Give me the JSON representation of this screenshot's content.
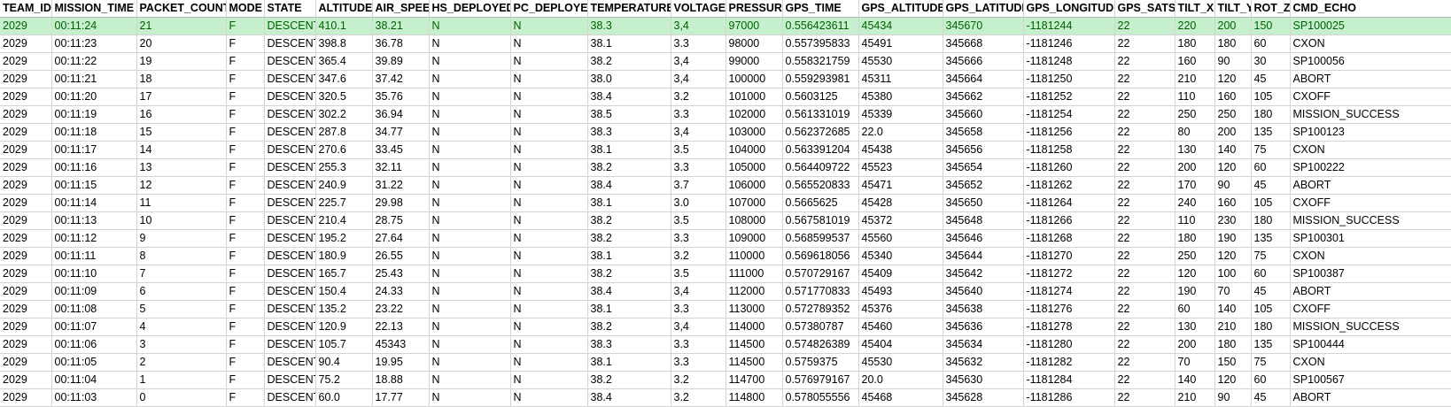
{
  "sheet": {
    "columns": [
      "TEAM_ID",
      "MISSION_TIME",
      "PACKET_COUNT",
      "MODE",
      "STATE",
      "ALTITUDE",
      "AIR_SPEED",
      "HS_DEPLOYED",
      "PC_DEPLOYED",
      "TEMPERATURE",
      "VOLTAGE",
      "PRESSURE",
      "GPS_TIME",
      "GPS_ALTITUDE",
      "GPS_LATITUDE",
      "GPS_LONGITUDE",
      "GPS_SATS",
      "TILT_X",
      "TILT_Y",
      "ROT_Z",
      "CMD_ECHO"
    ],
    "selected_row_index": 0,
    "highlight_color": "#c6efce",
    "rows": [
      [
        "2029",
        "00:11:24",
        "21",
        "F",
        "DESCENT",
        "410.1",
        "38.21",
        "N",
        "N",
        "38.3",
        "3,4",
        "97000",
        "0.556423611",
        "45434",
        "345670",
        "-1181244",
        "22",
        "220",
        "200",
        "150",
        "SP100025"
      ],
      [
        "2029",
        "00:11:23",
        "20",
        "F",
        "DESCENT",
        "398.8",
        "36.78",
        "N",
        "N",
        "38.1",
        "3.3",
        "98000",
        "0.557395833",
        "45491",
        "345668",
        "-1181246",
        "22",
        "180",
        "180",
        "60",
        "CXON"
      ],
      [
        "2029",
        "00:11:22",
        "19",
        "F",
        "DESCENT",
        "365.4",
        "39.89",
        "N",
        "N",
        "38.2",
        "3,4",
        "99000",
        "0.558321759",
        "45530",
        "345666",
        "-1181248",
        "22",
        "160",
        "90",
        "30",
        "SP100056"
      ],
      [
        "2029",
        "00:11:21",
        "18",
        "F",
        "DESCENT",
        "347.6",
        "37.42",
        "N",
        "N",
        "38.0",
        "3,4",
        "100000",
        "0.559293981",
        "45311",
        "345664",
        "-1181250",
        "22",
        "210",
        "120",
        "45",
        "ABORT"
      ],
      [
        "2029",
        "00:11:20",
        "17",
        "F",
        "DESCENT",
        "320.5",
        "35.76",
        "N",
        "N",
        "38.4",
        "3.2",
        "101000",
        "0.5603125",
        "45380",
        "345662",
        "-1181252",
        "22",
        "110",
        "160",
        "105",
        "CXOFF"
      ],
      [
        "2029",
        "00:11:19",
        "16",
        "F",
        "DESCENT",
        "302.2",
        "36.94",
        "N",
        "N",
        "38.5",
        "3.3",
        "102000",
        "0.561331019",
        "45339",
        "345660",
        "-1181254",
        "22",
        "250",
        "250",
        "180",
        "MISSION_SUCCESS"
      ],
      [
        "2029",
        "00:11:18",
        "15",
        "F",
        "DESCENT",
        "287.8",
        "34.77",
        "N",
        "N",
        "38.3",
        "3,4",
        "103000",
        "0.562372685",
        "22.0",
        "345658",
        "-1181256",
        "22",
        "80",
        "200",
        "135",
        "SP100123"
      ],
      [
        "2029",
        "00:11:17",
        "14",
        "F",
        "DESCENT",
        "270.6",
        "33.45",
        "N",
        "N",
        "38.1",
        "3.5",
        "104000",
        "0.563391204",
        "45438",
        "345656",
        "-1181258",
        "22",
        "130",
        "140",
        "75",
        "CXON"
      ],
      [
        "2029",
        "00:11:16",
        "13",
        "F",
        "DESCENT",
        "255.3",
        "32.11",
        "N",
        "N",
        "38.2",
        "3.3",
        "105000",
        "0.564409722",
        "45523",
        "345654",
        "-1181260",
        "22",
        "200",
        "120",
        "60",
        "SP100222"
      ],
      [
        "2029",
        "00:11:15",
        "12",
        "F",
        "DESCENT",
        "240.9",
        "31.22",
        "N",
        "N",
        "38.4",
        "3.7",
        "106000",
        "0.565520833",
        "45471",
        "345652",
        "-1181262",
        "22",
        "170",
        "90",
        "45",
        "ABORT"
      ],
      [
        "2029",
        "00:11:14",
        "11",
        "F",
        "DESCENT",
        "225.7",
        "29.98",
        "N",
        "N",
        "38.1",
        "3.0",
        "107000",
        "0.5665625",
        "45428",
        "345650",
        "-1181264",
        "22",
        "240",
        "160",
        "105",
        "CXOFF"
      ],
      [
        "2029",
        "00:11:13",
        "10",
        "F",
        "DESCENT",
        "210.4",
        "28.75",
        "N",
        "N",
        "38.2",
        "3.5",
        "108000",
        "0.567581019",
        "45372",
        "345648",
        "-1181266",
        "22",
        "110",
        "230",
        "180",
        "MISSION_SUCCESS"
      ],
      [
        "2029",
        "00:11:12",
        "9",
        "F",
        "DESCENT",
        "195.2",
        "27.64",
        "N",
        "N",
        "38.2",
        "3.3",
        "109000",
        "0.568599537",
        "45560",
        "345646",
        "-1181268",
        "22",
        "180",
        "190",
        "135",
        "SP100301"
      ],
      [
        "2029",
        "00:11:11",
        "8",
        "F",
        "DESCENT",
        "180.9",
        "26.55",
        "N",
        "N",
        "38.1",
        "3.2",
        "110000",
        "0.569618056",
        "45340",
        "345644",
        "-1181270",
        "22",
        "250",
        "120",
        "75",
        "CXON"
      ],
      [
        "2029",
        "00:11:10",
        "7",
        "F",
        "DESCENT",
        "165.7",
        "25.43",
        "N",
        "N",
        "38.2",
        "3.5",
        "111000",
        "0.570729167",
        "45409",
        "345642",
        "-1181272",
        "22",
        "120",
        "100",
        "60",
        "SP100387"
      ],
      [
        "2029",
        "00:11:09",
        "6",
        "F",
        "DESCENT",
        "150.4",
        "24.33",
        "N",
        "N",
        "38.4",
        "3,4",
        "112000",
        "0.571770833",
        "45493",
        "345640",
        "-1181274",
        "22",
        "190",
        "70",
        "45",
        "ABORT"
      ],
      [
        "2029",
        "00:11:08",
        "5",
        "F",
        "DESCENT",
        "135.2",
        "23.22",
        "N",
        "N",
        "38.1",
        "3.3",
        "113000",
        "0.572789352",
        "45376",
        "345638",
        "-1181276",
        "22",
        "60",
        "140",
        "105",
        "CXOFF"
      ],
      [
        "2029",
        "00:11:07",
        "4",
        "F",
        "DESCENT",
        "120.9",
        "22.13",
        "N",
        "N",
        "38.2",
        "3,4",
        "114000",
        "0.57380787",
        "45460",
        "345636",
        "-1181278",
        "22",
        "130",
        "210",
        "180",
        "MISSION_SUCCESS"
      ],
      [
        "2029",
        "00:11:06",
        "3",
        "F",
        "DESCENT",
        "105.7",
        "45343",
        "N",
        "N",
        "38.3",
        "3.3",
        "114500",
        "0.574826389",
        "45404",
        "345634",
        "-1181280",
        "22",
        "200",
        "180",
        "135",
        "SP100444"
      ],
      [
        "2029",
        "00:11:05",
        "2",
        "F",
        "DESCENT",
        "90.4",
        "19.95",
        "N",
        "N",
        "38.1",
        "3.3",
        "114500",
        "0.5759375",
        "45530",
        "345632",
        "-1181282",
        "22",
        "70",
        "150",
        "75",
        "CXON"
      ],
      [
        "2029",
        "00:11:04",
        "1",
        "F",
        "DESCENT",
        "75.2",
        "18.88",
        "N",
        "N",
        "38.2",
        "3.2",
        "114700",
        "0.576979167",
        "20.0",
        "345630",
        "-1181284",
        "22",
        "140",
        "120",
        "60",
        "SP100567"
      ],
      [
        "2029",
        "00:11:03",
        "0",
        "F",
        "DESCENT",
        "60.0",
        "17.77",
        "N",
        "N",
        "38.4",
        "3.2",
        "114800",
        "0.578055556",
        "45468",
        "345628",
        "-1181286",
        "22",
        "210",
        "90",
        "45",
        "ABORT"
      ]
    ]
  }
}
